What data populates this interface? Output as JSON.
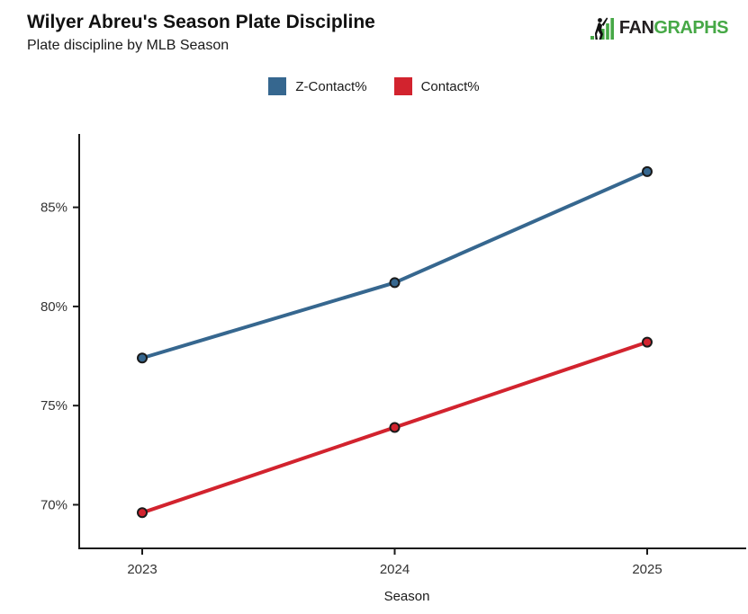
{
  "header": {
    "title": "Wilyer Abreu's Season Plate Discipline",
    "subtitle": "Plate discipline by MLB Season"
  },
  "logo": {
    "fan": "FAN",
    "graphs": "GRAPHS",
    "black": "#231f20",
    "green": "#46a846"
  },
  "chart_data": {
    "type": "line",
    "title": "Wilyer Abreu's Season Plate Discipline",
    "subtitle": "Plate discipline by MLB Season",
    "x": [
      "2023",
      "2024",
      "2025"
    ],
    "series": [
      {
        "name": "Z-Contact%",
        "color": "#36678f",
        "values": [
          77.4,
          81.2,
          86.8
        ]
      },
      {
        "name": "Contact%",
        "color": "#d2232e",
        "values": [
          69.6,
          73.9,
          78.2
        ]
      }
    ],
    "xlabel": "Season",
    "ylabel": "",
    "yticks": [
      70,
      75,
      80,
      85
    ],
    "ytick_suffix": "%",
    "ylim": [
      67.8,
      88.7
    ],
    "grid": false,
    "legend_position": "top-center",
    "marker": "circle-black-outline",
    "axis_color": "#1a1a1a"
  }
}
